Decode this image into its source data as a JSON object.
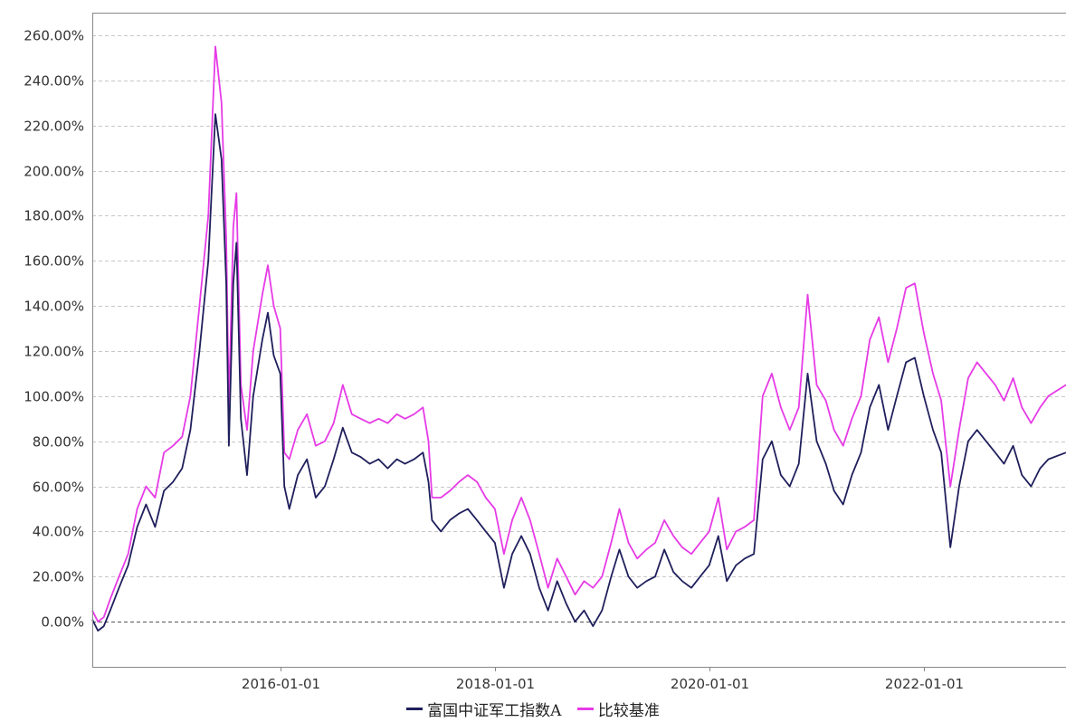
{
  "chart_data": {
    "type": "line",
    "title": "",
    "xlabel": "",
    "ylabel": "",
    "x_axis_type": "date",
    "xlim": [
      "2014-04-01",
      "2023-04-30"
    ],
    "ylim": [
      -20,
      270
    ],
    "grid": true,
    "legend_position": "bottom",
    "y_ticks": [
      "0.00%",
      "20.00%",
      "40.00%",
      "60.00%",
      "80.00%",
      "100.00%",
      "120.00%",
      "140.00%",
      "160.00%",
      "180.00%",
      "200.00%",
      "220.00%",
      "240.00%",
      "260.00%"
    ],
    "y_tick_values": [
      0,
      20,
      40,
      60,
      80,
      100,
      120,
      140,
      160,
      180,
      200,
      220,
      240,
      260
    ],
    "x_ticks": [
      "2016-01-01",
      "2018-01-01",
      "2020-01-01",
      "2022-01-01"
    ],
    "series": [
      {
        "name": "富国中证军工指数A",
        "color": "#1f1f5c",
        "points": [
          [
            "2014-04-01",
            1
          ],
          [
            "2014-04-20",
            -4
          ],
          [
            "2014-05-10",
            -2
          ],
          [
            "2014-06-01",
            5
          ],
          [
            "2014-07-01",
            15
          ],
          [
            "2014-08-01",
            25
          ],
          [
            "2014-09-01",
            42
          ],
          [
            "2014-10-01",
            52
          ],
          [
            "2014-11-01",
            42
          ],
          [
            "2014-12-01",
            58
          ],
          [
            "2015-01-01",
            62
          ],
          [
            "2015-02-01",
            68
          ],
          [
            "2015-03-01",
            85
          ],
          [
            "2015-04-01",
            120
          ],
          [
            "2015-05-01",
            160
          ],
          [
            "2015-05-25",
            225
          ],
          [
            "2015-06-15",
            205
          ],
          [
            "2015-07-01",
            150
          ],
          [
            "2015-07-10",
            78
          ],
          [
            "2015-07-25",
            150
          ],
          [
            "2015-08-05",
            168
          ],
          [
            "2015-08-20",
            90
          ],
          [
            "2015-09-10",
            65
          ],
          [
            "2015-10-01",
            100
          ],
          [
            "2015-11-01",
            125
          ],
          [
            "2015-11-20",
            137
          ],
          [
            "2015-12-10",
            118
          ],
          [
            "2016-01-01",
            110
          ],
          [
            "2016-01-15",
            60
          ],
          [
            "2016-02-01",
            50
          ],
          [
            "2016-03-01",
            65
          ],
          [
            "2016-04-01",
            72
          ],
          [
            "2016-05-01",
            55
          ],
          [
            "2016-06-01",
            60
          ],
          [
            "2016-07-01",
            72
          ],
          [
            "2016-08-01",
            86
          ],
          [
            "2016-09-01",
            75
          ],
          [
            "2016-10-01",
            73
          ],
          [
            "2016-11-01",
            70
          ],
          [
            "2016-12-01",
            72
          ],
          [
            "2017-01-01",
            68
          ],
          [
            "2017-02-01",
            72
          ],
          [
            "2017-03-01",
            70
          ],
          [
            "2017-04-01",
            72
          ],
          [
            "2017-05-01",
            75
          ],
          [
            "2017-05-20",
            62
          ],
          [
            "2017-06-01",
            45
          ],
          [
            "2017-07-01",
            40
          ],
          [
            "2017-08-01",
            45
          ],
          [
            "2017-09-01",
            48
          ],
          [
            "2017-10-01",
            50
          ],
          [
            "2017-11-01",
            45
          ],
          [
            "2017-12-01",
            40
          ],
          [
            "2018-01-01",
            35
          ],
          [
            "2018-02-01",
            15
          ],
          [
            "2018-03-01",
            30
          ],
          [
            "2018-04-01",
            38
          ],
          [
            "2018-05-01",
            30
          ],
          [
            "2018-06-01",
            15
          ],
          [
            "2018-07-01",
            5
          ],
          [
            "2018-08-01",
            18
          ],
          [
            "2018-09-01",
            8
          ],
          [
            "2018-10-01",
            0
          ],
          [
            "2018-11-01",
            5
          ],
          [
            "2018-12-01",
            -2
          ],
          [
            "2019-01-01",
            5
          ],
          [
            "2019-02-01",
            20
          ],
          [
            "2019-03-01",
            32
          ],
          [
            "2019-04-01",
            20
          ],
          [
            "2019-05-01",
            15
          ],
          [
            "2019-06-01",
            18
          ],
          [
            "2019-07-01",
            20
          ],
          [
            "2019-08-01",
            32
          ],
          [
            "2019-09-01",
            22
          ],
          [
            "2019-10-01",
            18
          ],
          [
            "2019-11-01",
            15
          ],
          [
            "2019-12-01",
            20
          ],
          [
            "2020-01-01",
            25
          ],
          [
            "2020-02-01",
            38
          ],
          [
            "2020-03-01",
            18
          ],
          [
            "2020-04-01",
            25
          ],
          [
            "2020-05-01",
            28
          ],
          [
            "2020-06-01",
            30
          ],
          [
            "2020-07-01",
            72
          ],
          [
            "2020-08-01",
            80
          ],
          [
            "2020-09-01",
            65
          ],
          [
            "2020-10-01",
            60
          ],
          [
            "2020-11-01",
            70
          ],
          [
            "2020-12-01",
            110
          ],
          [
            "2021-01-01",
            80
          ],
          [
            "2021-02-01",
            70
          ],
          [
            "2021-03-01",
            58
          ],
          [
            "2021-04-01",
            52
          ],
          [
            "2021-05-01",
            65
          ],
          [
            "2021-06-01",
            75
          ],
          [
            "2021-07-01",
            95
          ],
          [
            "2021-08-01",
            105
          ],
          [
            "2021-09-01",
            85
          ],
          [
            "2021-10-01",
            100
          ],
          [
            "2021-11-01",
            115
          ],
          [
            "2021-12-01",
            117
          ],
          [
            "2022-01-01",
            100
          ],
          [
            "2022-02-01",
            85
          ],
          [
            "2022-03-01",
            75
          ],
          [
            "2022-04-01",
            33
          ],
          [
            "2022-05-01",
            60
          ],
          [
            "2022-06-01",
            80
          ],
          [
            "2022-07-01",
            85
          ],
          [
            "2022-08-01",
            80
          ],
          [
            "2022-09-01",
            75
          ],
          [
            "2022-10-01",
            70
          ],
          [
            "2022-11-01",
            78
          ],
          [
            "2022-12-01",
            65
          ],
          [
            "2023-01-01",
            60
          ],
          [
            "2023-02-01",
            68
          ],
          [
            "2023-03-01",
            72
          ],
          [
            "2023-04-30",
            75
          ]
        ]
      },
      {
        "name": "比较基准",
        "color": "#e63be6",
        "points": [
          [
            "2014-04-01",
            5
          ],
          [
            "2014-04-20",
            0
          ],
          [
            "2014-05-10",
            2
          ],
          [
            "2014-06-01",
            10
          ],
          [
            "2014-07-01",
            20
          ],
          [
            "2014-08-01",
            30
          ],
          [
            "2014-09-01",
            50
          ],
          [
            "2014-10-01",
            60
          ],
          [
            "2014-11-01",
            55
          ],
          [
            "2014-12-01",
            75
          ],
          [
            "2015-01-01",
            78
          ],
          [
            "2015-02-01",
            82
          ],
          [
            "2015-03-01",
            100
          ],
          [
            "2015-04-01",
            140
          ],
          [
            "2015-05-01",
            180
          ],
          [
            "2015-05-25",
            255
          ],
          [
            "2015-06-15",
            230
          ],
          [
            "2015-07-01",
            170
          ],
          [
            "2015-07-10",
            95
          ],
          [
            "2015-07-25",
            175
          ],
          [
            "2015-08-05",
            190
          ],
          [
            "2015-08-20",
            105
          ],
          [
            "2015-09-10",
            85
          ],
          [
            "2015-10-01",
            120
          ],
          [
            "2015-11-01",
            145
          ],
          [
            "2015-11-20",
            158
          ],
          [
            "2015-12-10",
            140
          ],
          [
            "2016-01-01",
            130
          ],
          [
            "2016-01-15",
            75
          ],
          [
            "2016-02-01",
            72
          ],
          [
            "2016-03-01",
            85
          ],
          [
            "2016-04-01",
            92
          ],
          [
            "2016-05-01",
            78
          ],
          [
            "2016-06-01",
            80
          ],
          [
            "2016-07-01",
            88
          ],
          [
            "2016-08-01",
            105
          ],
          [
            "2016-09-01",
            92
          ],
          [
            "2016-10-01",
            90
          ],
          [
            "2016-11-01",
            88
          ],
          [
            "2016-12-01",
            90
          ],
          [
            "2017-01-01",
            88
          ],
          [
            "2017-02-01",
            92
          ],
          [
            "2017-03-01",
            90
          ],
          [
            "2017-04-01",
            92
          ],
          [
            "2017-05-01",
            95
          ],
          [
            "2017-05-20",
            80
          ],
          [
            "2017-06-01",
            55
          ],
          [
            "2017-07-01",
            55
          ],
          [
            "2017-08-01",
            58
          ],
          [
            "2017-09-01",
            62
          ],
          [
            "2017-10-01",
            65
          ],
          [
            "2017-11-01",
            62
          ],
          [
            "2017-12-01",
            55
          ],
          [
            "2018-01-01",
            50
          ],
          [
            "2018-02-01",
            30
          ],
          [
            "2018-03-01",
            45
          ],
          [
            "2018-04-01",
            55
          ],
          [
            "2018-05-01",
            45
          ],
          [
            "2018-06-01",
            30
          ],
          [
            "2018-07-01",
            15
          ],
          [
            "2018-08-01",
            28
          ],
          [
            "2018-09-01",
            20
          ],
          [
            "2018-10-01",
            12
          ],
          [
            "2018-11-01",
            18
          ],
          [
            "2018-12-01",
            15
          ],
          [
            "2019-01-01",
            20
          ],
          [
            "2019-02-01",
            35
          ],
          [
            "2019-03-01",
            50
          ],
          [
            "2019-04-01",
            35
          ],
          [
            "2019-05-01",
            28
          ],
          [
            "2019-06-01",
            32
          ],
          [
            "2019-07-01",
            35
          ],
          [
            "2019-08-01",
            45
          ],
          [
            "2019-09-01",
            38
          ],
          [
            "2019-10-01",
            33
          ],
          [
            "2019-11-01",
            30
          ],
          [
            "2019-12-01",
            35
          ],
          [
            "2020-01-01",
            40
          ],
          [
            "2020-02-01",
            55
          ],
          [
            "2020-03-01",
            32
          ],
          [
            "2020-04-01",
            40
          ],
          [
            "2020-05-01",
            42
          ],
          [
            "2020-06-01",
            45
          ],
          [
            "2020-07-01",
            100
          ],
          [
            "2020-08-01",
            110
          ],
          [
            "2020-09-01",
            95
          ],
          [
            "2020-10-01",
            85
          ],
          [
            "2020-11-01",
            95
          ],
          [
            "2020-12-01",
            145
          ],
          [
            "2021-01-01",
            105
          ],
          [
            "2021-02-01",
            98
          ],
          [
            "2021-03-01",
            85
          ],
          [
            "2021-04-01",
            78
          ],
          [
            "2021-05-01",
            90
          ],
          [
            "2021-06-01",
            100
          ],
          [
            "2021-07-01",
            125
          ],
          [
            "2021-08-01",
            135
          ],
          [
            "2021-09-01",
            115
          ],
          [
            "2021-10-01",
            130
          ],
          [
            "2021-11-01",
            148
          ],
          [
            "2021-12-01",
            150
          ],
          [
            "2022-01-01",
            128
          ],
          [
            "2022-02-01",
            110
          ],
          [
            "2022-03-01",
            98
          ],
          [
            "2022-04-01",
            60
          ],
          [
            "2022-05-01",
            85
          ],
          [
            "2022-06-01",
            108
          ],
          [
            "2022-07-01",
            115
          ],
          [
            "2022-08-01",
            110
          ],
          [
            "2022-09-01",
            105
          ],
          [
            "2022-10-01",
            98
          ],
          [
            "2022-11-01",
            108
          ],
          [
            "2022-12-01",
            95
          ],
          [
            "2023-01-01",
            88
          ],
          [
            "2023-02-01",
            95
          ],
          [
            "2023-03-01",
            100
          ],
          [
            "2023-04-30",
            105
          ]
        ]
      }
    ]
  }
}
